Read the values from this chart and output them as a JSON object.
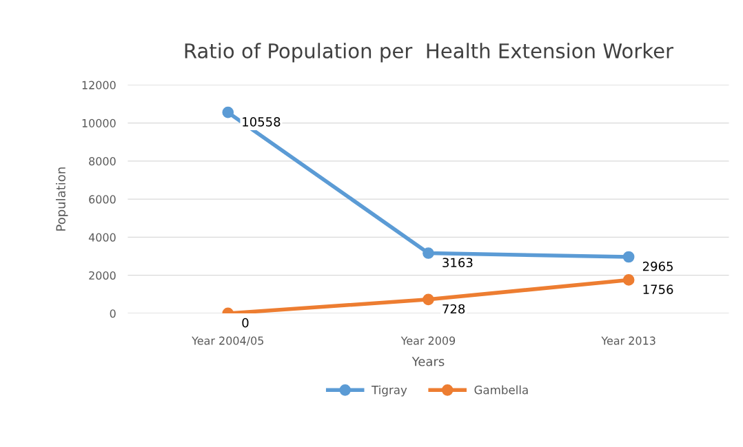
{
  "chart_data": {
    "type": "line",
    "title": "Ratio of Population per  Health Extension Worker",
    "xlabel": "Years",
    "ylabel": "Population",
    "categories": [
      "Year 2004/05",
      "Year 2009",
      "Year 2013"
    ],
    "series": [
      {
        "name": "Tigray",
        "color": "#5b9bd5",
        "values": [
          10558,
          3163,
          2965
        ]
      },
      {
        "name": "Gambella",
        "color": "#ed7d31",
        "values": [
          0,
          728,
          1756
        ]
      }
    ],
    "ylim": [
      0,
      12000
    ],
    "yticks": [
      0,
      2000,
      4000,
      6000,
      8000,
      10000,
      12000
    ],
    "grid": "y",
    "legend": "bottom",
    "marker": "circle",
    "line_style": "solid",
    "data_labels": true
  }
}
